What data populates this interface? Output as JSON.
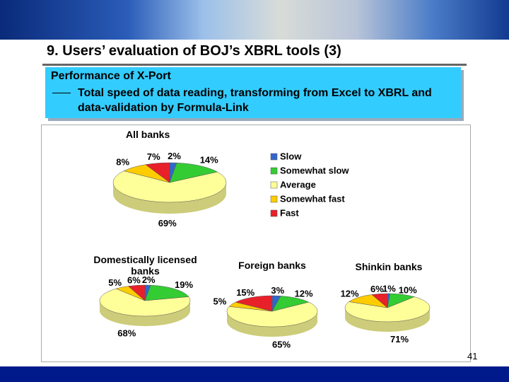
{
  "slide": {
    "title": "9. Users’ evaluation of BOJ’s XBRL tools (3)",
    "box_heading": "Performance of X-Port",
    "box_text": "Total speed of data reading, transforming from Excel to XBRL and data-validation by Formula-Link",
    "page_number": "41"
  },
  "chart_data": [
    {
      "type": "pie",
      "title": "All banks",
      "legend": true,
      "categories": [
        "Slow",
        "Somewhat slow",
        "Average",
        "Somewhat fast",
        "Fast"
      ],
      "colors": [
        "#3366cc",
        "#33cc33",
        "#ffff99",
        "#ffcc00",
        "#e8202a"
      ],
      "values": [
        2,
        14,
        69,
        8,
        7
      ],
      "value_labels": [
        "2%",
        "14%",
        "69%",
        "8%",
        "7%"
      ]
    },
    {
      "type": "pie",
      "title": "Domestically licensed banks",
      "values": [
        2,
        19,
        68,
        5,
        6
      ],
      "value_labels": [
        "2%",
        "19%",
        "68%",
        "5%",
        "6%"
      ]
    },
    {
      "type": "pie",
      "title": "Foreign banks",
      "values": [
        3,
        12,
        65,
        5,
        15
      ],
      "value_labels": [
        "3%",
        "12%",
        "65%",
        "5%",
        "15%"
      ]
    },
    {
      "type": "pie",
      "title": "Shinkin banks",
      "values": [
        1,
        10,
        71,
        12,
        6
      ],
      "value_labels": [
        "1%",
        "10%",
        "71%",
        "12%",
        "6%"
      ]
    }
  ]
}
